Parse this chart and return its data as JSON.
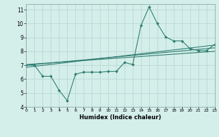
{
  "title": "",
  "xlabel": "Humidex (Indice chaleur)",
  "bg_color": "#d4eeea",
  "grid_color": "#b8d8d4",
  "line_color": "#2e7d70",
  "xlim": [
    0,
    23
  ],
  "ylim": [
    4,
    11.4
  ],
  "xticks": [
    0,
    1,
    2,
    3,
    4,
    5,
    6,
    7,
    8,
    9,
    10,
    11,
    12,
    13,
    14,
    15,
    16,
    17,
    18,
    19,
    20,
    21,
    22,
    23
  ],
  "yticks": [
    4,
    5,
    6,
    7,
    8,
    9,
    10,
    11
  ],
  "series1_x": [
    0,
    1,
    2,
    3,
    4,
    5,
    6,
    7,
    8,
    9,
    10,
    11,
    12,
    13,
    14,
    15,
    16,
    17,
    18,
    19,
    20,
    21,
    22,
    23
  ],
  "series1_y": [
    7.0,
    7.0,
    6.2,
    6.2,
    5.2,
    4.45,
    6.35,
    6.5,
    6.5,
    6.5,
    6.55,
    6.55,
    7.2,
    7.05,
    9.85,
    11.2,
    10.0,
    9.05,
    8.75,
    8.75,
    8.2,
    8.05,
    8.05,
    8.5
  ],
  "trend1_x": [
    0,
    23
  ],
  "trend1_y": [
    7.0,
    8.25
  ],
  "trend2_x": [
    0,
    23
  ],
  "trend2_y": [
    6.85,
    8.45
  ],
  "trend3_x": [
    0,
    23
  ],
  "trend3_y": [
    7.05,
    8.0
  ]
}
